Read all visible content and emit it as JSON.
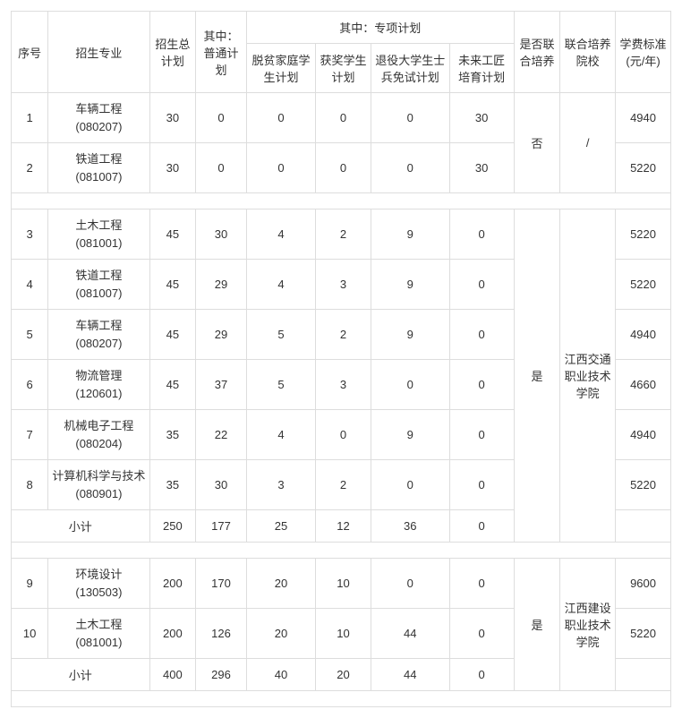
{
  "headers": {
    "seq": "序号",
    "major": "招生专业",
    "total_plan": "招生总计划",
    "regular_plan": "其中：普通计划",
    "special_group": "其中：专项计划",
    "special": {
      "poverty": "脱贫家庭学生计划",
      "award": "获奖学生计划",
      "veteran": "退役大学生士兵免试计划",
      "future": "未来工匠培育计划"
    },
    "joint_flag": "是否联合培养",
    "joint_school": "联合培养院校",
    "tuition": "学费标准(元/年)"
  },
  "groups": [
    {
      "joint_flag": "否",
      "joint_school": "/",
      "rows": [
        {
          "seq": "1",
          "major_name": "车辆工程",
          "major_code": "(080207)",
          "total": "30",
          "regular": "0",
          "poverty": "0",
          "award": "0",
          "veteran": "0",
          "future": "30",
          "tuition": "4940"
        },
        {
          "seq": "2",
          "major_name": "铁道工程",
          "major_code": "(081007)",
          "total": "30",
          "regular": "0",
          "poverty": "0",
          "award": "0",
          "veteran": "0",
          "future": "30",
          "tuition": "5220"
        }
      ],
      "subtotal": null
    },
    {
      "joint_flag": "是",
      "joint_school": "江西交通职业技术学院",
      "rows": [
        {
          "seq": "3",
          "major_name": "土木工程",
          "major_code": "(081001)",
          "total": "45",
          "regular": "30",
          "poverty": "4",
          "award": "2",
          "veteran": "9",
          "future": "0",
          "tuition": "5220"
        },
        {
          "seq": "4",
          "major_name": "铁道工程",
          "major_code": "(081007)",
          "total": "45",
          "regular": "29",
          "poverty": "4",
          "award": "3",
          "veteran": "9",
          "future": "0",
          "tuition": "5220"
        },
        {
          "seq": "5",
          "major_name": "车辆工程",
          "major_code": "(080207)",
          "total": "45",
          "regular": "29",
          "poverty": "5",
          "award": "2",
          "veteran": "9",
          "future": "0",
          "tuition": "4940"
        },
        {
          "seq": "6",
          "major_name": "物流管理",
          "major_code": "(120601)",
          "total": "45",
          "regular": "37",
          "poverty": "5",
          "award": "3",
          "veteran": "0",
          "future": "0",
          "tuition": "4660"
        },
        {
          "seq": "7",
          "major_name": "机械电子工程",
          "major_code": "(080204)",
          "total": "35",
          "regular": "22",
          "poverty": "4",
          "award": "0",
          "veteran": "9",
          "future": "0",
          "tuition": "4940"
        },
        {
          "seq": "8",
          "major_name": "计算机科学与技术",
          "major_code": "(080901)",
          "total": "35",
          "regular": "30",
          "poverty": "3",
          "award": "2",
          "veteran": "0",
          "future": "0",
          "tuition": "5220"
        }
      ],
      "subtotal": {
        "label": "小计",
        "total": "250",
        "regular": "177",
        "poverty": "25",
        "award": "12",
        "veteran": "36",
        "future": "0"
      }
    },
    {
      "joint_flag": "是",
      "joint_school": "江西建设职业技术学院",
      "rows": [
        {
          "seq": "9",
          "major_name": "环境设计",
          "major_code": "(130503)",
          "total": "200",
          "regular": "170",
          "poverty": "20",
          "award": "10",
          "veteran": "0",
          "future": "0",
          "tuition": "9600"
        },
        {
          "seq": "10",
          "major_name": "土木工程",
          "major_code": "(081001)",
          "total": "200",
          "regular": "126",
          "poverty": "20",
          "award": "10",
          "veteran": "44",
          "future": "0",
          "tuition": "5220"
        }
      ],
      "subtotal": {
        "label": "小计",
        "total": "400",
        "regular": "296",
        "poverty": "40",
        "award": "20",
        "veteran": "44",
        "future": "0"
      }
    }
  ]
}
